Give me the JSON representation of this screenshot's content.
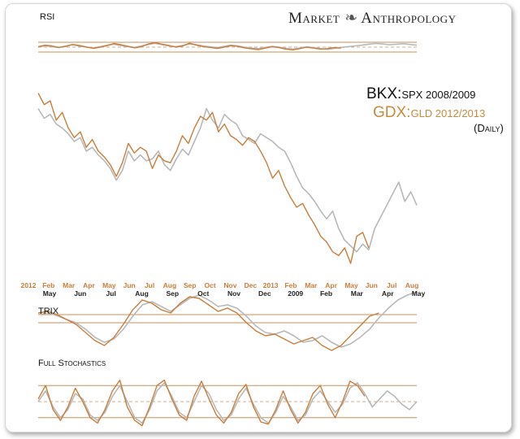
{
  "brand": {
    "left": "Market",
    "right": "Anthropology",
    "mark_icon": "dna-helix-icon"
  },
  "legend": {
    "series1_main": "BKX:",
    "series1_sub": "SPX 2008/2009",
    "series2_main": "GDX:",
    "series2_sub": "GLD 2012/2013",
    "period": "(Daily)"
  },
  "colors": {
    "gray": "#b8b8b8",
    "orange": "#c97d3a",
    "band": "#c9915e"
  },
  "chart_data": [
    {
      "type": "line",
      "title": "RSI",
      "ylim": [
        0,
        100
      ],
      "bands": [
        30,
        50,
        70
      ],
      "series": [
        {
          "name": "BKX:SPX 2008/2009",
          "color": "#b8b8b8",
          "values": [
            50,
            56,
            52,
            48,
            55,
            60,
            54,
            50,
            47,
            52,
            58,
            62,
            57,
            52,
            49,
            55,
            61,
            66,
            60,
            55,
            52,
            57,
            63,
            60,
            55,
            51,
            48,
            53,
            58,
            55,
            50,
            46,
            44,
            49,
            53,
            50,
            45,
            42,
            46,
            51,
            48,
            44,
            41,
            45,
            49,
            52,
            55,
            58,
            62,
            65,
            63,
            60,
            62,
            64,
            61,
            58
          ]
        },
        {
          "name": "GDX:GLD 2012/2013",
          "color": "#c97d3a",
          "values": [
            52,
            58,
            55,
            49,
            53,
            61,
            57,
            51,
            45,
            50,
            56,
            65,
            60,
            54,
            47,
            52,
            63,
            68,
            62,
            57,
            50,
            55,
            66,
            58,
            52,
            49,
            45,
            50,
            56,
            53,
            47,
            43,
            40,
            46,
            52,
            48,
            42,
            39,
            44,
            50,
            46,
            42,
            44,
            48,
            46
          ]
        }
      ]
    },
    {
      "type": "line",
      "title": "",
      "ylim": [
        0,
        100
      ],
      "x_labels_top": [
        "2012",
        "Feb",
        "Mar",
        "Apr",
        "May",
        "Jun",
        "Jul",
        "Aug",
        "Sep",
        "Oct",
        "Nov",
        "Dec",
        "2013",
        "Feb",
        "Mar",
        "Apr",
        "May",
        "Jun",
        "Jul",
        "Aug"
      ],
      "x_labels_bottom": [
        "May",
        "Jun",
        "Jul",
        "Aug",
        "Sep",
        "Oct",
        "Nov",
        "Dec",
        "2009",
        "Feb",
        "Mar",
        "Apr",
        "May"
      ],
      "series": [
        {
          "name": "BKX:SPX 2008/2009",
          "color": "#b8b8b8",
          "values": [
            88,
            83,
            85,
            80,
            78,
            75,
            71,
            73,
            66,
            68,
            64,
            61,
            57,
            51,
            56,
            66,
            61,
            64,
            61,
            62,
            66,
            59,
            56,
            62,
            67,
            64,
            71,
            78,
            88,
            82,
            78,
            85,
            82,
            80,
            74,
            72,
            70,
            75,
            73,
            71,
            68,
            66,
            60,
            53,
            47,
            44,
            40,
            35,
            31,
            35,
            26,
            20,
            17,
            14,
            18,
            15,
            26,
            32,
            38,
            44,
            50,
            40,
            45,
            38
          ]
        },
        {
          "name": "GDX:GLD 2012/2013",
          "color": "#c97d3a",
          "values": [
            96,
            90,
            92,
            82,
            86,
            78,
            73,
            76,
            68,
            72,
            66,
            63,
            59,
            53,
            60,
            70,
            65,
            68,
            66,
            57,
            64,
            61,
            60,
            66,
            74,
            70,
            78,
            84,
            82,
            86,
            76,
            80,
            74,
            72,
            69,
            73,
            71,
            66,
            60,
            52,
            56,
            48,
            42,
            37,
            39,
            33,
            28,
            22,
            19,
            14,
            12,
            16,
            8,
            22,
            24,
            16
          ]
        }
      ]
    },
    {
      "type": "line",
      "title": "TRIX",
      "ylim": [
        -1,
        1
      ],
      "bands": [
        0
      ],
      "series": [
        {
          "name": "BKX:SPX 2008/2009",
          "color": "#b8b8b8",
          "values": [
            0.25,
            0.3,
            0.22,
            0.1,
            0.0,
            -0.2,
            -0.45,
            -0.6,
            -0.5,
            -0.2,
            0.2,
            0.55,
            0.65,
            0.5,
            0.35,
            0.55,
            0.75,
            0.85,
            0.7,
            0.5,
            0.55,
            0.45,
            0.2,
            -0.1,
            -0.3,
            -0.35,
            -0.25,
            -0.4,
            -0.6,
            -0.55,
            -0.4,
            -0.6,
            -0.75,
            -0.65,
            -0.45,
            -0.2,
            0.15,
            0.45,
            0.7,
            0.85,
            0.95
          ]
        },
        {
          "name": "GDX:GLD 2012/2013",
          "color": "#c97d3a",
          "values": [
            0.3,
            0.35,
            0.25,
            0.1,
            -0.05,
            -0.3,
            -0.55,
            -0.7,
            -0.45,
            -0.05,
            0.4,
            0.7,
            0.6,
            0.4,
            0.3,
            0.6,
            0.8,
            0.75,
            0.55,
            0.35,
            0.45,
            0.3,
            0.0,
            -0.25,
            -0.4,
            -0.35,
            -0.5,
            -0.65,
            -0.55,
            -0.45,
            -0.7,
            -0.85,
            -0.7,
            -0.4,
            -0.1,
            0.2,
            0.3
          ]
        }
      ]
    },
    {
      "type": "line",
      "title": "Full Stochastics",
      "ylim": [
        0,
        100
      ],
      "bands": [
        20,
        50,
        80
      ],
      "series": [
        {
          "name": "BKX:SPX 2008/2009",
          "color": "#b8b8b8",
          "values": [
            50,
            70,
            40,
            20,
            35,
            65,
            55,
            25,
            15,
            30,
            60,
            80,
            50,
            20,
            10,
            35,
            70,
            85,
            60,
            30,
            20,
            50,
            80,
            65,
            35,
            15,
            25,
            55,
            75,
            45,
            20,
            10,
            30,
            60,
            40,
            15,
            25,
            55,
            70,
            50,
            30,
            45,
            75,
            85,
            65,
            40,
            55,
            70,
            60,
            45,
            35,
            50
          ]
        },
        {
          "name": "GDX:GLD 2012/2013",
          "color": "#c97d3a",
          "values": [
            55,
            80,
            35,
            15,
            40,
            75,
            50,
            20,
            10,
            35,
            70,
            90,
            40,
            15,
            5,
            40,
            80,
            90,
            55,
            25,
            15,
            60,
            88,
            55,
            25,
            10,
            30,
            65,
            82,
            40,
            12,
            8,
            35,
            70,
            35,
            10,
            30,
            65,
            80,
            45,
            20,
            50,
            88,
            80,
            60
          ]
        }
      ]
    }
  ]
}
